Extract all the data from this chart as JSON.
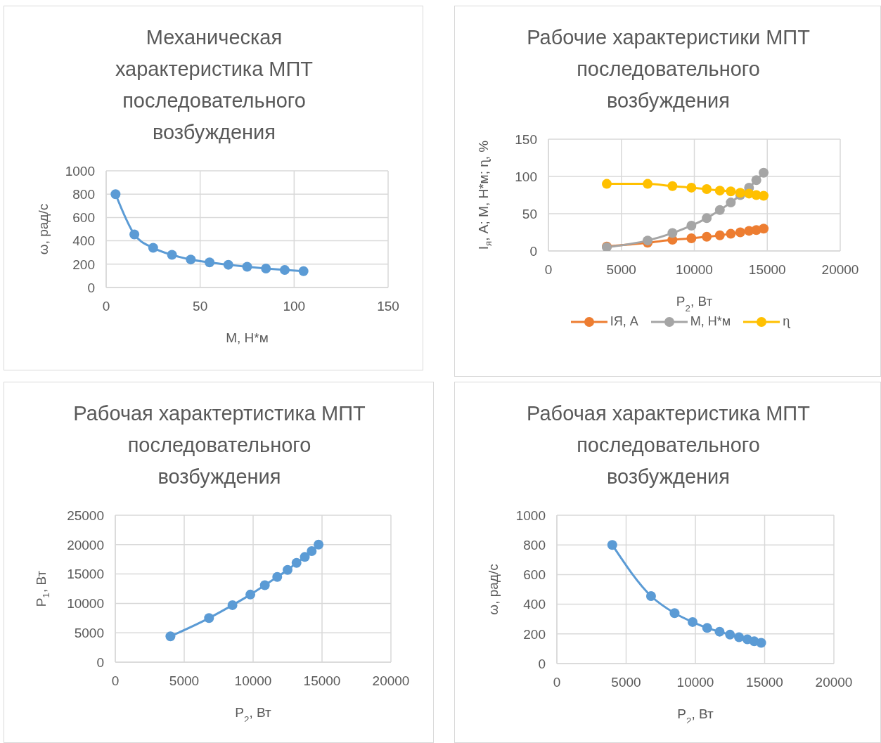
{
  "chart_data": [
    {
      "type": "line",
      "title": "Механическая характеристика МПТ последовательного возбуждения",
      "xlabel": "М, Н*м",
      "ylabel": "ω, рад/с",
      "x": [
        5,
        15,
        25,
        35,
        45,
        55,
        65,
        75,
        85,
        95,
        105
      ],
      "series": [
        {
          "color": "#5b9bd5",
          "values": [
            800,
            455,
            340,
            280,
            240,
            215,
            195,
            178,
            163,
            150,
            140
          ]
        }
      ],
      "xlim": [
        0,
        150
      ],
      "xticks": [
        0,
        50,
        100,
        150
      ],
      "ylim": [
        0,
        1000
      ],
      "yticks": [
        0,
        200,
        400,
        600,
        800,
        1000
      ],
      "grid": true,
      "marker": "circle",
      "legend": false
    },
    {
      "type": "line",
      "title": "Рабочие характеристики МПТ последовательного возбуждения",
      "xlabel": "P$_{2}$, Вт",
      "ylabel": "I$_{я}$, А; М, Н*м; ɳ, %",
      "x": [
        4000,
        6800,
        8500,
        9800,
        10850,
        11750,
        12500,
        13150,
        13750,
        14250,
        14750
      ],
      "series": [
        {
          "name": "IЯ, А",
          "color": "#ed7d31",
          "values": [
            6,
            11,
            15,
            17,
            19,
            21,
            23,
            25,
            27,
            28,
            30
          ]
        },
        {
          "name": "М, Н*м",
          "color": "#a5a5a5",
          "values": [
            5,
            14,
            24,
            34,
            44,
            55,
            65,
            75,
            85,
            95,
            105
          ]
        },
        {
          "name": "ɳ",
          "color": "#ffc000",
          "values": [
            90,
            90,
            87,
            85,
            83,
            81,
            80,
            78,
            77,
            75,
            74
          ]
        }
      ],
      "xlim": [
        0,
        20000
      ],
      "xticks": [
        0,
        5000,
        10000,
        15000,
        20000
      ],
      "ylim": [
        0,
        150
      ],
      "yticks": [
        0,
        50,
        100,
        150
      ],
      "grid": true,
      "marker": "circle",
      "legend": "bottom"
    },
    {
      "type": "line",
      "title": "Рабочая характертистика МПТ последовательного возбуждения",
      "xlabel": "P$_{2}$, Вт",
      "ylabel": "P$_{1}$, Вт",
      "x": [
        4000,
        6800,
        8500,
        9800,
        10850,
        11750,
        12500,
        13150,
        13750,
        14250,
        14750
      ],
      "series": [
        {
          "color": "#5b9bd5",
          "values": [
            4400,
            7500,
            9700,
            11500,
            13100,
            14500,
            15700,
            16900,
            17900,
            18900,
            20000
          ]
        }
      ],
      "xlim": [
        0,
        20000
      ],
      "xticks": [
        0,
        5000,
        10000,
        15000,
        20000
      ],
      "ylim": [
        0,
        25000
      ],
      "yticks": [
        0,
        5000,
        10000,
        15000,
        20000,
        25000
      ],
      "grid": true,
      "marker": "circle",
      "legend": false
    },
    {
      "type": "line",
      "title": "Рабочая характеристика МПТ последовательного возбуждения",
      "xlabel": "P$_{2}$, Вт",
      "ylabel": "ω, рад/с",
      "x": [
        4000,
        6800,
        8500,
        9800,
        10850,
        11750,
        12500,
        13150,
        13750,
        14250,
        14750
      ],
      "series": [
        {
          "color": "#5b9bd5",
          "values": [
            800,
            455,
            340,
            280,
            240,
            215,
            195,
            178,
            163,
            150,
            140
          ]
        }
      ],
      "xlim": [
        0,
        20000
      ],
      "xticks": [
        0,
        5000,
        10000,
        15000,
        20000
      ],
      "ylim": [
        0,
        1000
      ],
      "yticks": [
        0,
        200,
        400,
        600,
        800,
        1000
      ],
      "grid": true,
      "marker": "circle",
      "legend": false
    }
  ]
}
